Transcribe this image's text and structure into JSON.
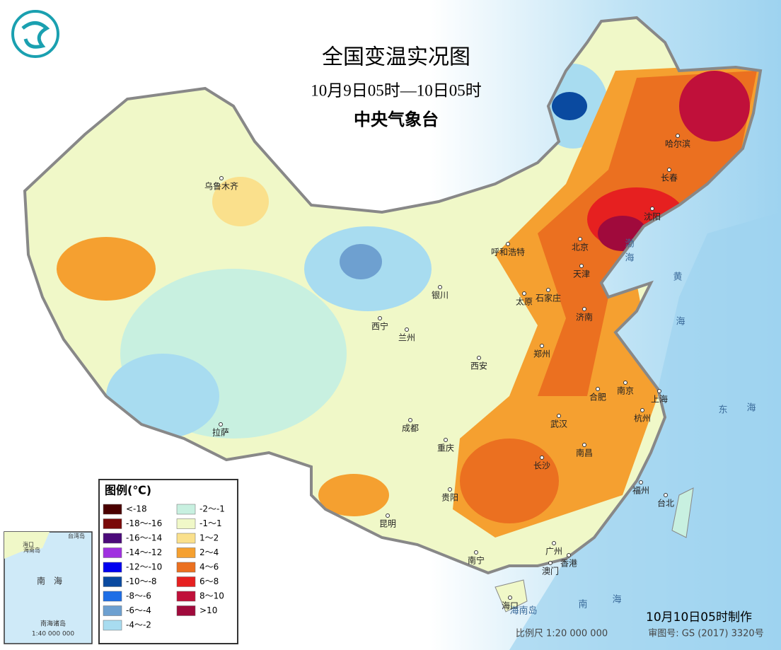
{
  "header": {
    "title": "全国变温实况图",
    "subtitle": "10月9日05时—10日05时",
    "agency": "中央气象台"
  },
  "legend": {
    "title": "图例(℃)",
    "items": [
      {
        "label": "<-18",
        "color": "#4a0000"
      },
      {
        "label": "-18～-16",
        "color": "#7a0a0a"
      },
      {
        "label": "-16～-14",
        "color": "#4b0a7a"
      },
      {
        "label": "-14～-12",
        "color": "#a030e0"
      },
      {
        "label": "-12～-10",
        "color": "#0000f0"
      },
      {
        "label": "-10～-8",
        "color": "#0a4aa0"
      },
      {
        "label": "-8～-6",
        "color": "#1e6ee6"
      },
      {
        "label": "-6～-4",
        "color": "#6ea0d0"
      },
      {
        "label": "-4～-2",
        "color": "#a8dcf0"
      },
      {
        "label": "-2～-1",
        "color": "#c8f0e0"
      },
      {
        "label": "-1～1",
        "color": "#f0f8c8"
      },
      {
        "label": "1～2",
        "color": "#fae08c"
      },
      {
        "label": "2～4",
        "color": "#f5a030"
      },
      {
        "label": "4～6",
        "color": "#eb7020"
      },
      {
        "label": "6～8",
        "color": "#e62020"
      },
      {
        "label": "8～10",
        "color": "#c0103a"
      },
      {
        "label": ">10",
        "color": "#a00a3c"
      }
    ]
  },
  "cities": [
    "哈尔滨",
    "长春",
    "沈阳",
    "北京",
    "天津",
    "呼和浩特",
    "石家庄",
    "太原",
    "济南",
    "银川",
    "西宁",
    "兰州",
    "郑州",
    "西安",
    "南京",
    "合肥",
    "上海",
    "杭州",
    "武汉",
    "南昌",
    "长沙",
    "成都",
    "重庆",
    "贵阳",
    "昆明",
    "拉萨",
    "乌鲁木齐",
    "福州",
    "台北",
    "广州",
    "香港",
    "澳门",
    "南宁",
    "海口"
  ],
  "seas": [
    "渤",
    "海",
    "黄",
    "海",
    "东",
    "海",
    "南",
    "海",
    "海南岛"
  ],
  "inset": {
    "labels": [
      "海口",
      "海南岛",
      "台湾岛",
      "南",
      "海",
      "南海诸岛",
      "1:40 000 000"
    ]
  },
  "footer": {
    "made": "10月10日05时制作",
    "scale": "比例尺 1:20 000 000",
    "approval": "审图号: GS (2017) 3320号"
  }
}
